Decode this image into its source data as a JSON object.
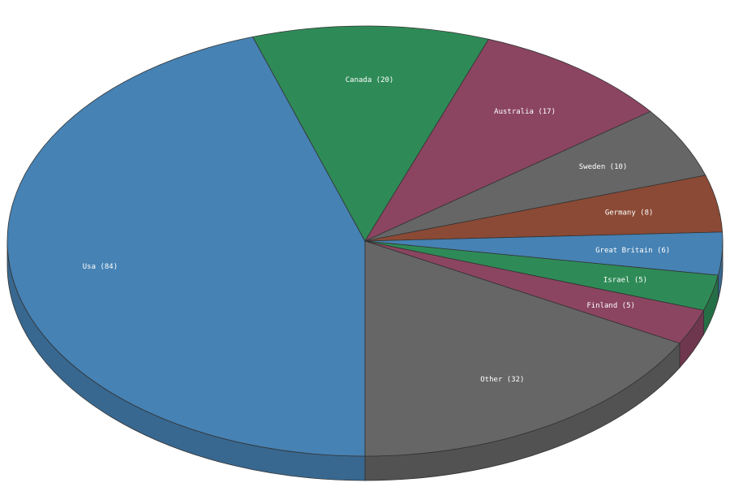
{
  "chart_data": {
    "type": "pie",
    "values": [
      84,
      20,
      17,
      10,
      8,
      6,
      5,
      5,
      32
    ],
    "value_labels": [
      "Usa (84)",
      "Canada (20)",
      "Australia (17)",
      "Sweden (10)",
      "Germany (8)",
      "Great Britain (6)",
      "Israel (5)",
      "Finland (5)",
      "Other (32)"
    ],
    "colors": [
      "#4682b4",
      "#2e8b57",
      "#8b4560",
      "#666666",
      "#8b4a35",
      "#4682b4",
      "#2e8b57",
      "#8b4560",
      "#666666"
    ]
  }
}
